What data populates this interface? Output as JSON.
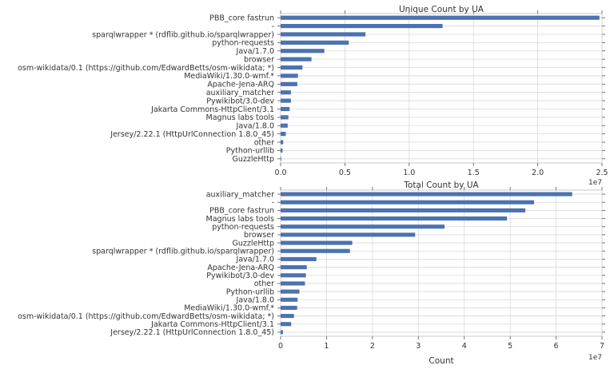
{
  "chart_data": [
    {
      "type": "bar",
      "orientation": "horizontal",
      "title": "Unique Count by UA",
      "xlabel": "",
      "exponent_label": "1e7",
      "xlim": [
        0,
        2.5
      ],
      "xticks": [
        0,
        0.5,
        1.0,
        1.5,
        2.0,
        2.5
      ],
      "xtick_labels": [
        "0.0",
        "0.5",
        "1.0",
        "1.5",
        "2.0",
        "2.5"
      ],
      "grid": true,
      "color": "#4c72b0",
      "categories": [
        "PBB_core fastrun",
        "-",
        "sparqlwrapper * (rdflib.github.io/sparqlwrapper)",
        "python-requests",
        "Java/1.7.0",
        "browser",
        "osm-wikidata/0.1 (https://github.com/EdwardBetts/osm-wikidata; *)",
        "MediaWiki/1.30.0-wmf.*",
        "Apache-Jena-ARQ",
        "auxiliary_matcher",
        "Pywikibot/3.0-dev",
        "Jakarta Commons-HttpClient/3.1",
        "Magnus labs tools",
        "Java/1.8.0",
        "Jersey/2.22.1 (HttpUrlConnection 1.8.0_45)",
        "other",
        "Python-urllib",
        "GuzzleHttp"
      ],
      "values": [
        2.48,
        1.26,
        0.66,
        0.53,
        0.34,
        0.24,
        0.17,
        0.135,
        0.13,
        0.08,
        0.08,
        0.07,
        0.06,
        0.055,
        0.04,
        0.02,
        0.015,
        0.005
      ]
    },
    {
      "type": "bar",
      "orientation": "horizontal",
      "title": "Total Count by UA",
      "xlabel": "Count",
      "exponent_label": "1e7",
      "xlim": [
        0,
        7
      ],
      "xticks": [
        0,
        1,
        2,
        3,
        4,
        5,
        6,
        7
      ],
      "xtick_labels": [
        "0",
        "1",
        "2",
        "3",
        "4",
        "5",
        "6",
        "7"
      ],
      "grid": true,
      "color": "#4c72b0",
      "categories": [
        "auxiliary_matcher",
        "-",
        "PBB_core fastrun",
        "Magnus labs tools",
        "python-requests",
        "browser",
        "GuzzleHttp",
        "sparqlwrapper * (rdflib.github.io/sparqlwrapper)",
        "Java/1.7.0",
        "Apache-Jena-ARQ",
        "Pywikibot/3.0-dev",
        "other",
        "Python-urllib",
        "Java/1.8.0",
        "MediaWiki/1.30.0-wmf.*",
        "osm-wikidata/0.1 (https://github.com/EdwardBetts/osm-wikidata; *)",
        "Jakarta Commons-HttpClient/3.1",
        "Jersey/2.22.1 (HttpUrlConnection 1.8.0_45)"
      ],
      "values": [
        6.35,
        5.52,
        5.33,
        4.93,
        3.57,
        2.93,
        1.56,
        1.51,
        0.78,
        0.57,
        0.55,
        0.53,
        0.41,
        0.37,
        0.36,
        0.29,
        0.23,
        0.05
      ]
    }
  ]
}
